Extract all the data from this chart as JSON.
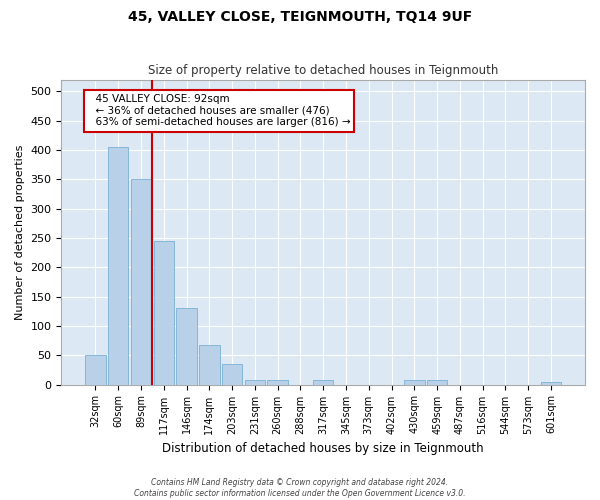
{
  "title": "45, VALLEY CLOSE, TEIGNMOUTH, TQ14 9UF",
  "subtitle": "Size of property relative to detached houses in Teignmouth",
  "xlabel": "Distribution of detached houses by size in Teignmouth",
  "ylabel": "Number of detached properties",
  "bar_color": "#b8d0e8",
  "bar_edge_color": "#7aafd4",
  "background_color": "#dce9f5",
  "grid_color": "#ffffff",
  "bins": [
    "32sqm",
    "60sqm",
    "89sqm",
    "117sqm",
    "146sqm",
    "174sqm",
    "203sqm",
    "231sqm",
    "260sqm",
    "288sqm",
    "317sqm",
    "345sqm",
    "373sqm",
    "402sqm",
    "430sqm",
    "459sqm",
    "487sqm",
    "516sqm",
    "544sqm",
    "573sqm",
    "601sqm"
  ],
  "values": [
    50,
    405,
    350,
    245,
    130,
    68,
    35,
    8,
    8,
    0,
    8,
    0,
    0,
    0,
    8,
    8,
    0,
    0,
    0,
    0,
    5
  ],
  "ylim": [
    0,
    520
  ],
  "yticks": [
    0,
    50,
    100,
    150,
    200,
    250,
    300,
    350,
    400,
    450,
    500
  ],
  "redline_bin_index": 2,
  "annotation_title": "45 VALLEY CLOSE: 92sqm",
  "annotation_line1": "← 36% of detached houses are smaller (476)",
  "annotation_line2": "63% of semi-detached houses are larger (816) →",
  "annotation_box_facecolor": "#ffffff",
  "annotation_box_edgecolor": "#cc0000",
  "footer1": "Contains HM Land Registry data © Crown copyright and database right 2024.",
  "footer2": "Contains public sector information licensed under the Open Government Licence v3.0."
}
